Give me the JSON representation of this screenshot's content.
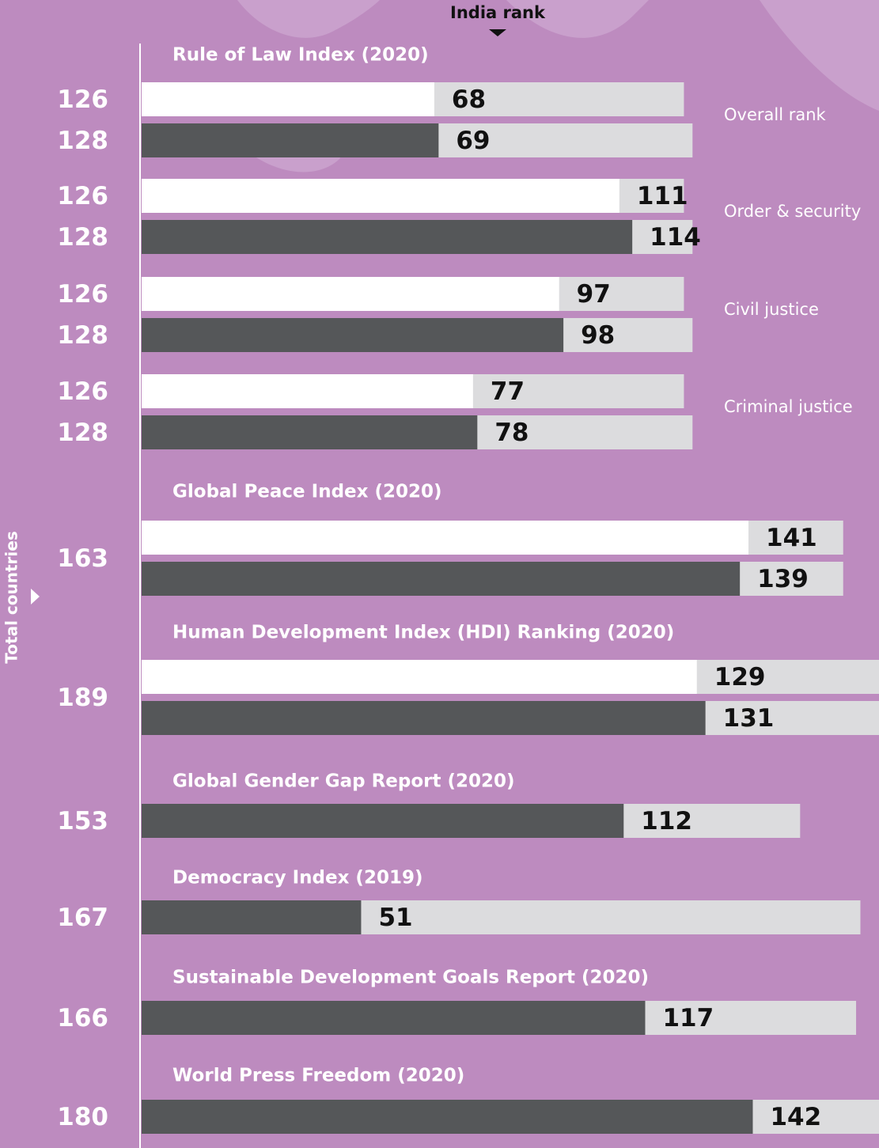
{
  "chart_data": {
    "type": "bar",
    "header": "India rank",
    "side_label": "Total countries",
    "track_color": "#dcdcde",
    "groups": [
      {
        "title": "Rule of Law Index (2020)",
        "sections": [
          {
            "label": "Overall rank",
            "rows": [
              {
                "total": 126,
                "rank": 68,
                "color": "#ffffff"
              },
              {
                "total": 128,
                "rank": 69,
                "color": "#555759"
              }
            ]
          },
          {
            "label": "Order & security",
            "rows": [
              {
                "total": 126,
                "rank": 111,
                "color": "#ffffff"
              },
              {
                "total": 128,
                "rank": 114,
                "color": "#555759"
              }
            ]
          },
          {
            "label": "Civil justice",
            "rows": [
              {
                "total": 126,
                "rank": 97,
                "color": "#ffffff"
              },
              {
                "total": 128,
                "rank": 98,
                "color": "#555759"
              }
            ]
          },
          {
            "label": "Criminal justice",
            "rows": [
              {
                "total": 126,
                "rank": 77,
                "color": "#ffffff"
              },
              {
                "total": 128,
                "rank": 78,
                "color": "#555759"
              }
            ]
          }
        ]
      },
      {
        "title": "Global Peace Index (2020)",
        "total": 163,
        "rows": [
          {
            "rank": 141,
            "color": "#ffffff"
          },
          {
            "rank": 139,
            "color": "#555759"
          }
        ]
      },
      {
        "title": "Human Development Index (HDI) Ranking (2020)",
        "total": 189,
        "rows": [
          {
            "rank": 129,
            "color": "#ffffff"
          },
          {
            "rank": 131,
            "color": "#555759"
          }
        ]
      },
      {
        "title": "Global Gender Gap Report (2020)",
        "total": 153,
        "rows": [
          {
            "rank": 112,
            "color": "#555759"
          }
        ]
      },
      {
        "title": "Democracy Index (2019)",
        "total": 167,
        "rows": [
          {
            "rank": 51,
            "color": "#555759"
          }
        ]
      },
      {
        "title": "Sustainable Development Goals Report (2020)",
        "total": 166,
        "rows": [
          {
            "rank": 117,
            "color": "#555759"
          }
        ]
      },
      {
        "title": "World Press Freedom (2020)",
        "total": 180,
        "rows": [
          {
            "rank": 142,
            "color": "#555759"
          }
        ]
      }
    ]
  }
}
